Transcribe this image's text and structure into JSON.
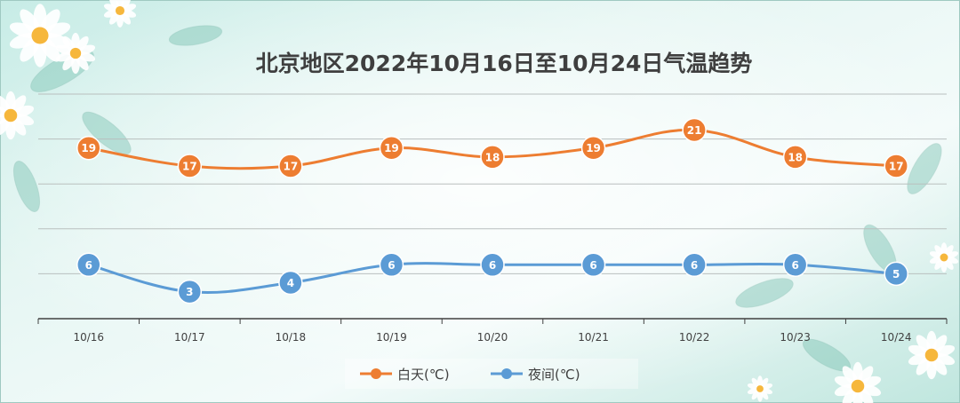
{
  "chart_data": {
    "type": "line",
    "title": "北京地区2022年10月16日至10月24日气温趋势",
    "categories": [
      "10/16",
      "10/17",
      "10/18",
      "10/19",
      "10/20",
      "10/21",
      "10/22",
      "10/23",
      "10/24"
    ],
    "series": [
      {
        "name": "白天(℃)",
        "values": [
          19,
          17,
          17,
          19,
          18,
          19,
          21,
          18,
          17
        ],
        "color": "#ED7D31"
      },
      {
        "name": "夜间(℃)",
        "values": [
          6,
          3,
          4,
          6,
          6,
          6,
          6,
          6,
          5
        ],
        "color": "#5B9BD5"
      }
    ],
    "ylim": [
      0,
      25
    ],
    "grid": true,
    "legend": "bottom-center",
    "smooth": true,
    "data_labels": true
  }
}
